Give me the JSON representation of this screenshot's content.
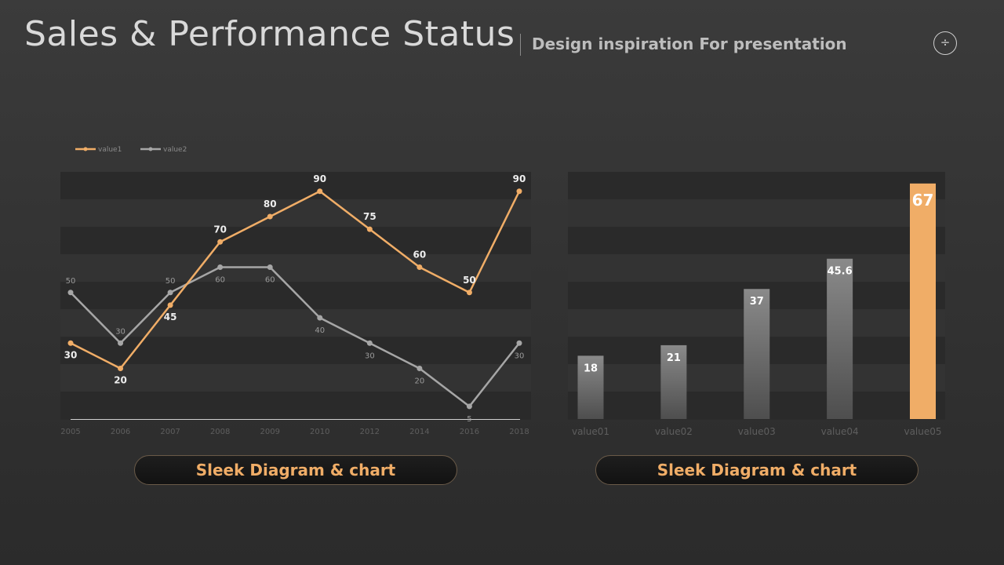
{
  "header": {
    "title": "Sales & Performance Status",
    "subtitle": "Design inspiration For presentation",
    "menu_icon": "÷"
  },
  "colors": {
    "accent": "#f0ad67",
    "secondary": "#a6a6a6",
    "band_dark": "#2a2a2a",
    "band_light": "#333333"
  },
  "chart_data": [
    {
      "type": "line",
      "x": [
        "2005",
        "2006",
        "2007",
        "2008",
        "2009",
        "2010",
        "2012",
        "2014",
        "2016",
        "2018"
      ],
      "series": [
        {
          "name": "value1",
          "color": "#f0ad67",
          "values": [
            30,
            20,
            45,
            70,
            80,
            90,
            75,
            60,
            50,
            90
          ]
        },
        {
          "name": "value2",
          "color": "#a6a6a6",
          "values": [
            50,
            30,
            50,
            60,
            60,
            40,
            30,
            20,
            5,
            30
          ]
        }
      ],
      "ylim": [
        0,
        100
      ],
      "legend": "top-left",
      "grid": "horizontal bands"
    },
    {
      "type": "bar",
      "categories": [
        "value01",
        "value02",
        "value03",
        "value04",
        "value05"
      ],
      "values": [
        18,
        21,
        37,
        45.6,
        67
      ],
      "highlight_index": 4,
      "ylim": [
        0,
        70
      ]
    }
  ],
  "buttons": {
    "left_label": "Sleek Diagram & chart",
    "right_label": "Sleek Diagram & chart"
  }
}
